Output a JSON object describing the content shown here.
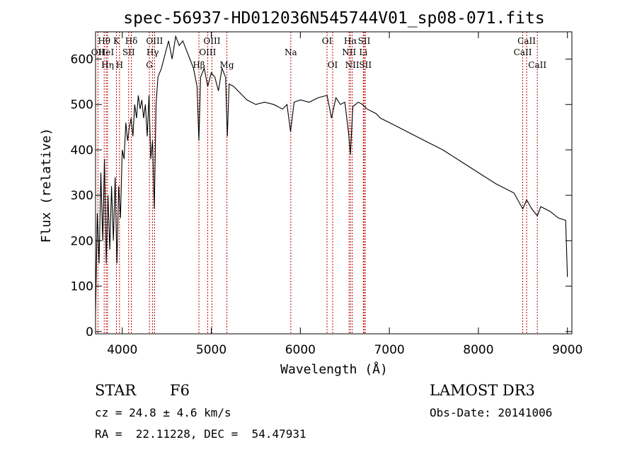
{
  "chart_data": {
    "type": "line",
    "title": "spec-56937-HD012036N545744V01_sp08-071.fits",
    "xlabel": "Wavelength (Å)",
    "ylabel": "Flux (relative)",
    "xlim": [
      3700,
      9050
    ],
    "ylim": [
      -5,
      660
    ],
    "xticks": [
      4000,
      5000,
      6000,
      7000,
      8000,
      9000
    ],
    "yticks": [
      0,
      100,
      200,
      300,
      400,
      500,
      600
    ],
    "grid": false,
    "series": [
      {
        "values_x": [
          3700,
          3720,
          3740,
          3760,
          3780,
          3800,
          3820,
          3840,
          3860,
          3880,
          3900,
          3920,
          3940,
          3960,
          3980,
          4000,
          4020,
          4040,
          4060,
          4080,
          4100,
          4120,
          4140,
          4160,
          4180,
          4200,
          4220,
          4240,
          4260,
          4280,
          4300,
          4320,
          4340,
          4360,
          4380,
          4400,
          4440,
          4480,
          4520,
          4560,
          4600,
          4640,
          4680,
          4720,
          4760,
          4800,
          4840,
          4861,
          4880,
          4920,
          4960,
          5000,
          5040,
          5080,
          5120,
          5160,
          5180,
          5200,
          5250,
          5300,
          5350,
          5400,
          5450,
          5500,
          5600,
          5700,
          5800,
          5850,
          5890,
          5930,
          6000,
          6100,
          6200,
          6300,
          6350,
          6400,
          6450,
          6500,
          6540,
          6563,
          6590,
          6620,
          6650,
          6700,
          6750,
          6800,
          6850,
          6900,
          7000,
          7100,
          7200,
          7400,
          7600,
          7800,
          8000,
          8200,
          8400,
          8498,
          8542,
          8600,
          8662,
          8700,
          8800,
          8900,
          8980,
          9000
        ],
        "values_y": [
          40,
          260,
          150,
          350,
          200,
          380,
          150,
          300,
          180,
          320,
          200,
          340,
          150,
          320,
          250,
          400,
          380,
          460,
          420,
          450,
          470,
          430,
          500,
          470,
          520,
          490,
          510,
          470,
          500,
          430,
          520,
          380,
          420,
          270,
          500,
          560,
          580,
          610,
          640,
          600,
          650,
          630,
          640,
          620,
          600,
          580,
          540,
          420,
          560,
          580,
          540,
          570,
          560,
          530,
          580,
          560,
          430,
          545,
          540,
          530,
          520,
          510,
          505,
          500,
          505,
          500,
          490,
          500,
          440,
          505,
          510,
          505,
          515,
          520,
          470,
          515,
          500,
          505,
          440,
          390,
          495,
          500,
          505,
          500,
          490,
          485,
          480,
          470,
          460,
          450,
          440,
          420,
          400,
          375,
          350,
          325,
          305,
          270,
          290,
          270,
          255,
          275,
          265,
          250,
          245,
          120
        ]
      }
    ],
    "lines": [
      {
        "label": "Hθ",
        "row": 1,
        "x": 3797
      },
      {
        "label": "OII",
        "row": 2,
        "x": 3727
      },
      {
        "label": "HeI",
        "row": 2,
        "x": 3820
      },
      {
        "label": "Hη",
        "row": 3,
        "x": 3835
      },
      {
        "label": "K",
        "row": 1,
        "x": 3934
      },
      {
        "label": "SII",
        "row": 2,
        "x": 4072
      },
      {
        "label": "H",
        "row": 3,
        "x": 3969
      },
      {
        "label": "Hδ",
        "row": 1,
        "x": 4102
      },
      {
        "label": "OIII",
        "row": 1,
        "x": 4363
      },
      {
        "label": "Hγ",
        "row": 2,
        "x": 4341
      },
      {
        "label": "G",
        "row": 3,
        "x": 4305
      },
      {
        "label": "OIII",
        "row": 1,
        "x": 5007
      },
      {
        "label": "OIII",
        "row": 2,
        "x": 4959
      },
      {
        "label": "Hβ",
        "row": 3,
        "x": 4861
      },
      {
        "label": "Mg",
        "row": 3,
        "x": 5175
      },
      {
        "label": "Na",
        "row": 2,
        "x": 5893
      },
      {
        "label": "OI",
        "row": 1,
        "x": 6300
      },
      {
        "label": "OI",
        "row": 3,
        "x": 6363
      },
      {
        "label": "Hα",
        "row": 1,
        "x": 6563
      },
      {
        "label": "SII",
        "row": 1,
        "x": 6717
      },
      {
        "label": "NII",
        "row": 2,
        "x": 6548
      },
      {
        "label": "Li",
        "row": 2,
        "x": 6707
      },
      {
        "label": "NII",
        "row": 3,
        "x": 6583
      },
      {
        "label": "SII",
        "row": 3,
        "x": 6731
      },
      {
        "label": "CaII",
        "row": 1,
        "x": 8542
      },
      {
        "label": "CaII",
        "row": 2,
        "x": 8498
      },
      {
        "label": "CaII",
        "row": 3,
        "x": 8662
      }
    ],
    "line_marker_color": "#c00000"
  },
  "info": {
    "object_class": "STAR",
    "subclass": "F6",
    "survey": "LAMOST DR3",
    "cz": "cz = 24.8 ± 4.6 km/s",
    "obs_date": "Obs-Date: 20141006",
    "coords": "RA =  22.11228, DEC =  54.47931"
  }
}
